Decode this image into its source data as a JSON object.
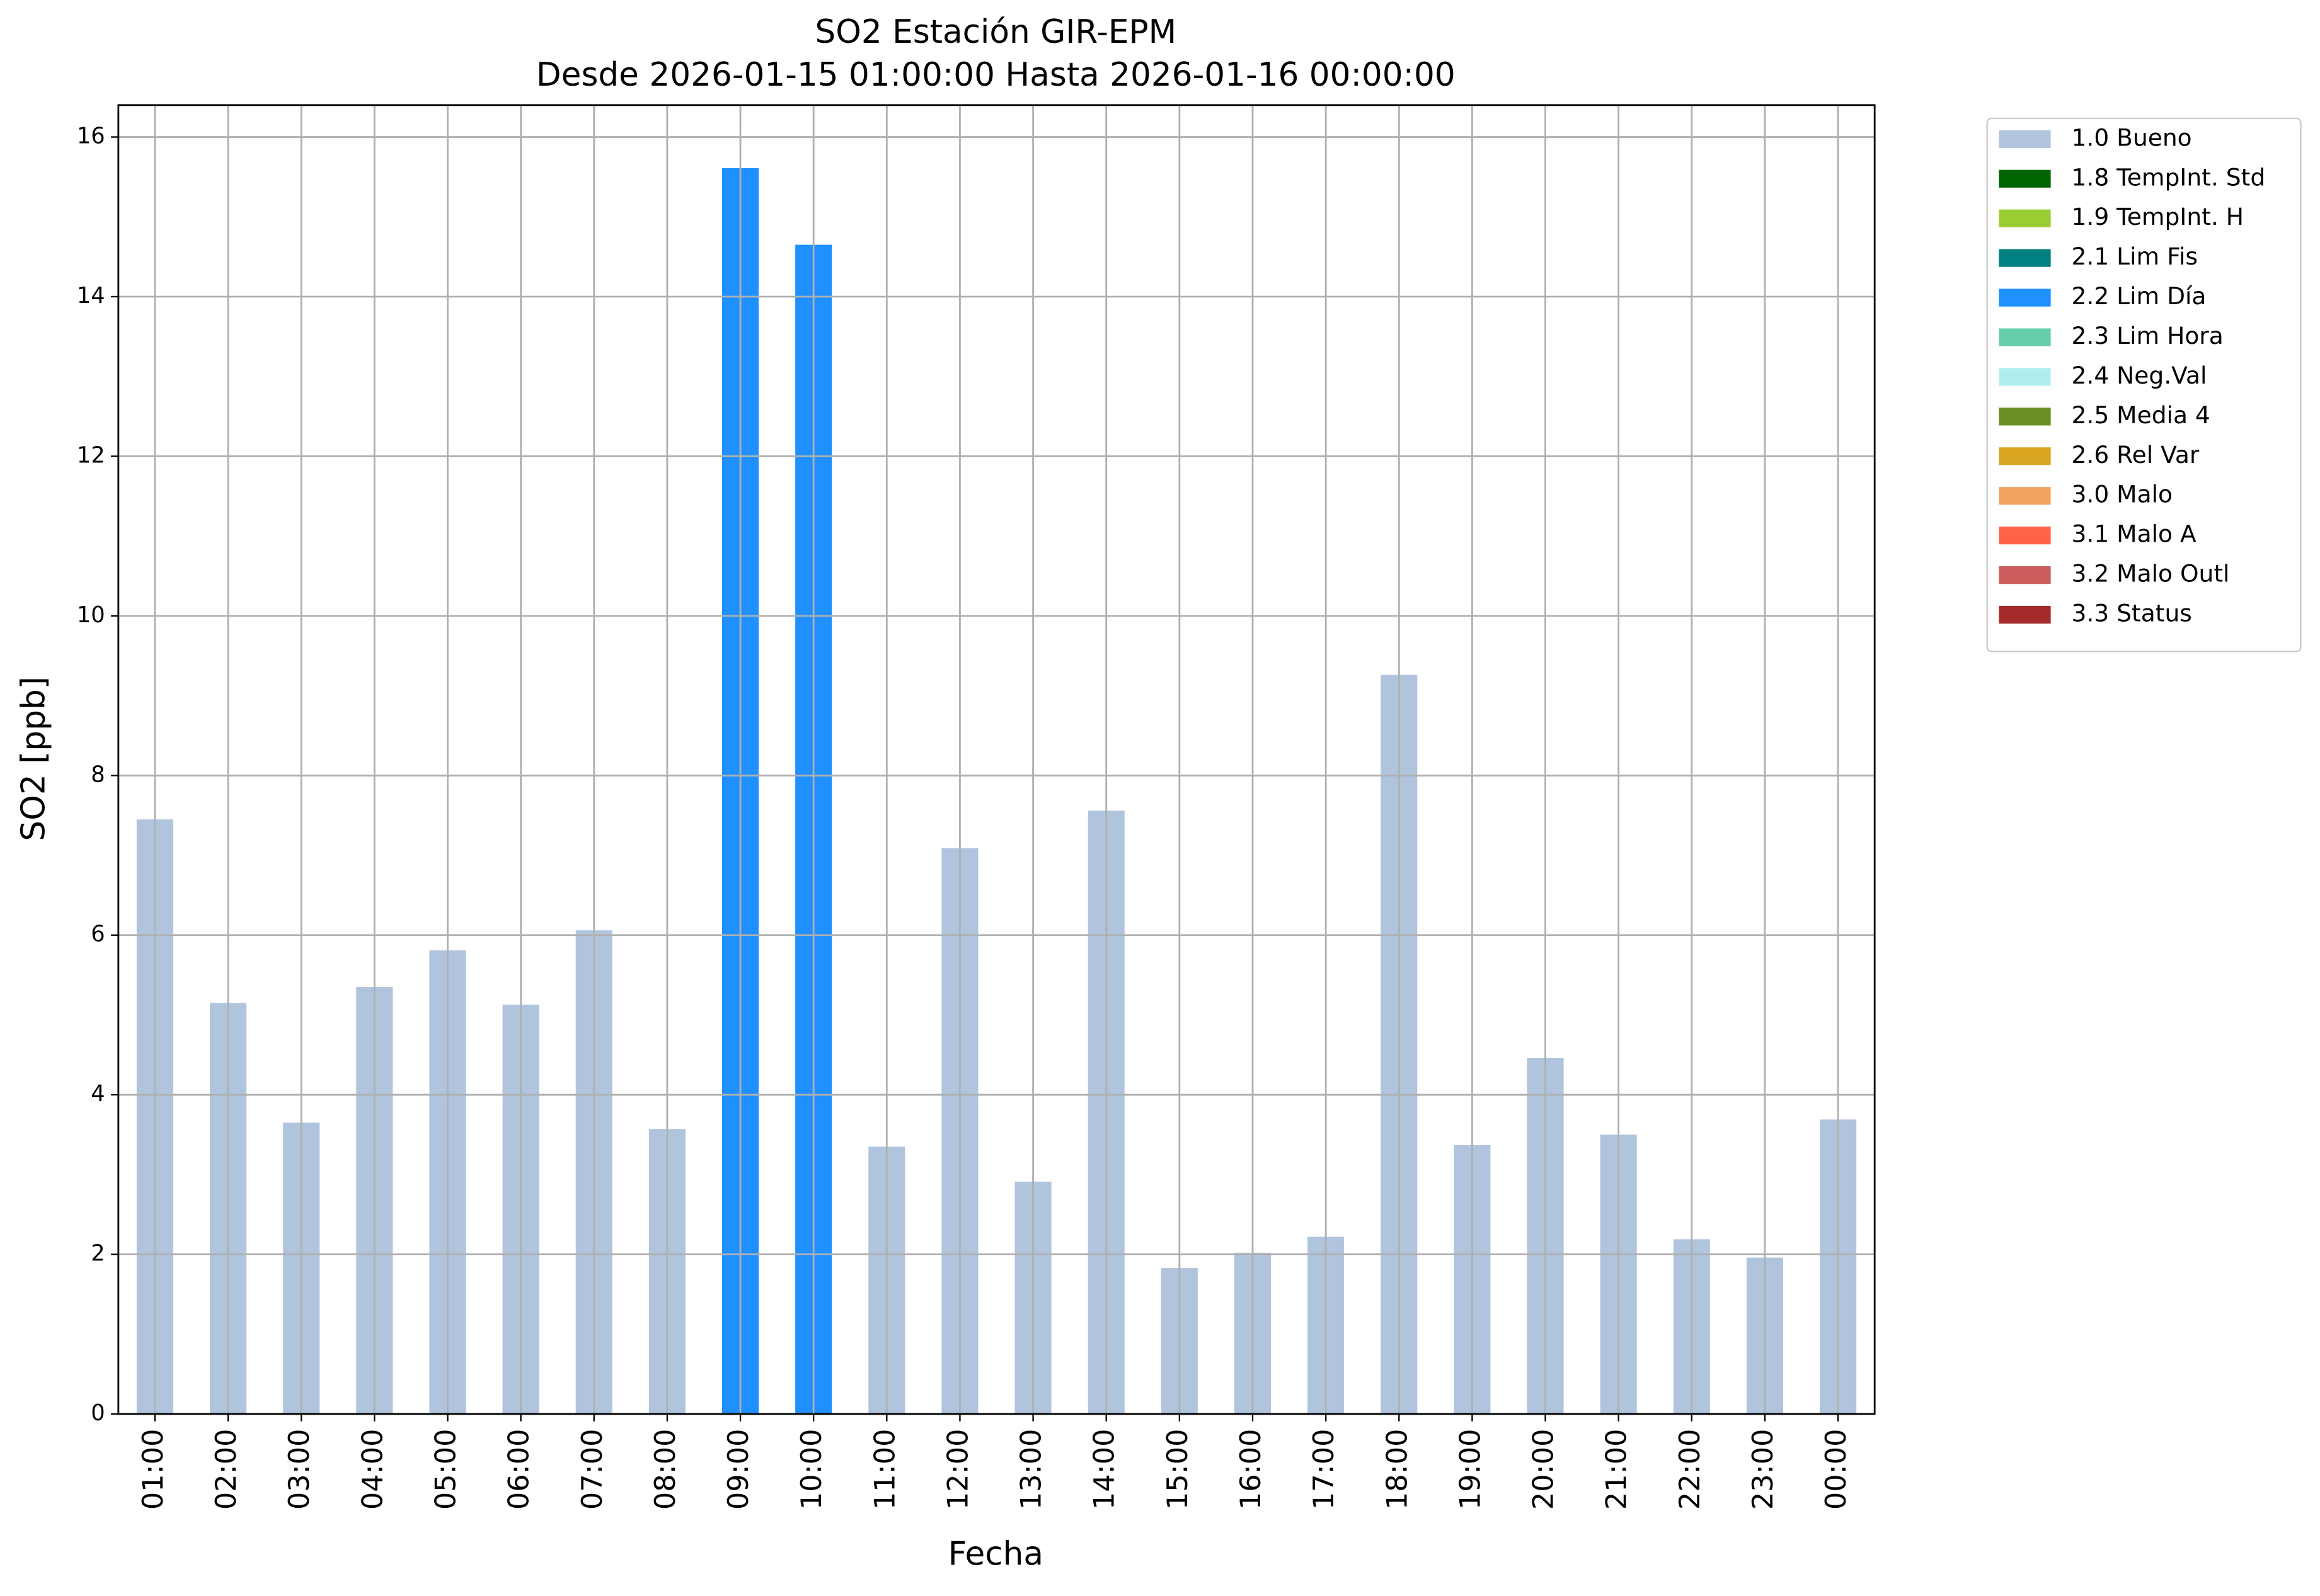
{
  "chart_data": {
    "type": "bar",
    "stacked": true,
    "title": "SO2 Estación GIR-EPM",
    "subtitle": "Desde 2026-01-15 01:00:00 Hasta 2026-01-16 00:00:00",
    "x_label": "Fecha",
    "y_label": "SO2 [ppb]",
    "categories": [
      "01:00",
      "02:00",
      "03:00",
      "04:00",
      "05:00",
      "06:00",
      "07:00",
      "08:00",
      "09:00",
      "10:00",
      "11:00",
      "12:00",
      "13:00",
      "14:00",
      "15:00",
      "16:00",
      "17:00",
      "18:00",
      "19:00",
      "20:00",
      "21:00",
      "22:00",
      "23:00",
      "00:00"
    ],
    "series": [
      {
        "name": "1.0 Bueno",
        "color": "#b0c4de",
        "values": [
          7.45,
          5.15,
          3.65,
          5.35,
          5.81,
          5.13,
          6.06,
          3.57,
          null,
          null,
          3.35,
          7.09,
          2.91,
          7.56,
          1.83,
          2.02,
          2.22,
          9.26,
          3.37,
          4.46,
          3.5,
          2.19,
          1.96,
          3.69
        ]
      },
      {
        "name": "1.8 TempInt. Std",
        "color": "#006400",
        "values": [
          null,
          null,
          null,
          null,
          null,
          null,
          null,
          null,
          null,
          null,
          null,
          null,
          null,
          null,
          null,
          null,
          null,
          null,
          null,
          null,
          null,
          null,
          null,
          null
        ]
      },
      {
        "name": "1.9 TempInt. H",
        "color": "#9acd32",
        "values": [
          null,
          null,
          null,
          null,
          null,
          null,
          null,
          null,
          null,
          null,
          null,
          null,
          null,
          null,
          null,
          null,
          null,
          null,
          null,
          null,
          null,
          null,
          null,
          null
        ]
      },
      {
        "name": "2.1 Lim Fis",
        "color": "#008080",
        "values": [
          null,
          null,
          null,
          null,
          null,
          null,
          null,
          null,
          null,
          null,
          null,
          null,
          null,
          null,
          null,
          null,
          null,
          null,
          null,
          null,
          null,
          null,
          null,
          null
        ]
      },
      {
        "name": "2.2 Lim Día",
        "color": "#1e90ff",
        "values": [
          null,
          null,
          null,
          null,
          null,
          null,
          null,
          null,
          15.61,
          14.65,
          null,
          null,
          null,
          null,
          null,
          null,
          null,
          null,
          null,
          null,
          null,
          null,
          null,
          null
        ]
      },
      {
        "name": "2.3 Lim Hora",
        "color": "#66cdaa",
        "values": [
          null,
          null,
          null,
          null,
          null,
          null,
          null,
          null,
          null,
          null,
          null,
          null,
          null,
          null,
          null,
          null,
          null,
          null,
          null,
          null,
          null,
          null,
          null,
          null
        ]
      },
      {
        "name": "2.4 Neg.Val",
        "color": "#afeeee",
        "values": [
          null,
          null,
          null,
          null,
          null,
          null,
          null,
          null,
          null,
          null,
          null,
          null,
          null,
          null,
          null,
          null,
          null,
          null,
          null,
          null,
          null,
          null,
          null,
          null
        ]
      },
      {
        "name": "2.5 Media 4",
        "color": "#6b8e23",
        "values": [
          null,
          null,
          null,
          null,
          null,
          null,
          null,
          null,
          null,
          null,
          null,
          null,
          null,
          null,
          null,
          null,
          null,
          null,
          null,
          null,
          null,
          null,
          null,
          null
        ]
      },
      {
        "name": "2.6 Rel Var",
        "color": "#daa520",
        "values": [
          null,
          null,
          null,
          null,
          null,
          null,
          null,
          null,
          null,
          null,
          null,
          null,
          null,
          null,
          null,
          null,
          null,
          null,
          null,
          null,
          null,
          null,
          null,
          null
        ]
      },
      {
        "name": "3.0 Malo",
        "color": "#f4a460",
        "values": [
          null,
          null,
          null,
          null,
          null,
          null,
          null,
          null,
          null,
          null,
          null,
          null,
          null,
          null,
          null,
          null,
          null,
          null,
          null,
          null,
          null,
          null,
          null,
          null
        ]
      },
      {
        "name": "3.1 Malo A",
        "color": "#ff6347",
        "values": [
          null,
          null,
          null,
          null,
          null,
          null,
          null,
          null,
          null,
          null,
          null,
          null,
          null,
          null,
          null,
          null,
          null,
          null,
          null,
          null,
          null,
          null,
          null,
          null
        ]
      },
      {
        "name": "3.2 Malo Outl",
        "color": "#cd5c5c",
        "values": [
          null,
          null,
          null,
          null,
          null,
          null,
          null,
          null,
          null,
          null,
          null,
          null,
          null,
          null,
          null,
          null,
          null,
          null,
          null,
          null,
          null,
          null,
          null,
          null
        ]
      },
      {
        "name": "3.3 Status",
        "color": "#a52a2a",
        "values": [
          null,
          null,
          null,
          null,
          null,
          null,
          null,
          null,
          null,
          null,
          null,
          null,
          null,
          null,
          null,
          null,
          null,
          null,
          null,
          null,
          null,
          null,
          null,
          null
        ]
      }
    ],
    "ylim": [
      0,
      16.4
    ],
    "yticks": [
      0,
      2,
      4,
      6,
      8,
      10,
      12,
      14,
      16
    ],
    "grid": true,
    "legend": "outside right"
  }
}
